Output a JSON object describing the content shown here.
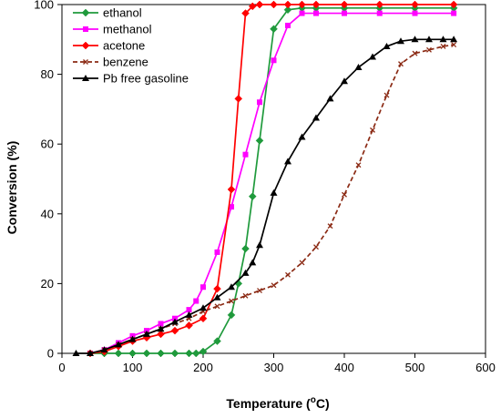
{
  "chart_data": {
    "type": "line",
    "title": "",
    "xlabel": "Temperature (",
    "xlabel_unit_sup": "o",
    "xlabel_unit_tail": "C)",
    "ylabel": "Conversion (%)",
    "xlim": [
      0,
      600
    ],
    "ylim": [
      0,
      100
    ],
    "xticks": [
      "0",
      "100",
      "200",
      "300",
      "400",
      "500",
      "600"
    ],
    "yticks": [
      "0",
      "20",
      "40",
      "60",
      "80",
      "100"
    ],
    "grid": false,
    "legend_position": "top-left",
    "series": [
      {
        "name": "ethanol",
        "color": "#1f9a3c",
        "marker": "diamond",
        "x": [
          40,
          60,
          80,
          100,
          120,
          140,
          160,
          180,
          190,
          200,
          220,
          240,
          250,
          260,
          270,
          280,
          300,
          320,
          340,
          360,
          400,
          450,
          500,
          555
        ],
        "y": [
          0,
          0,
          0,
          0,
          0,
          0,
          0,
          0,
          0,
          0.5,
          3.5,
          11,
          20,
          30,
          45,
          61,
          93,
          98.5,
          99,
          99,
          99,
          99,
          99,
          99
        ]
      },
      {
        "name": "methanol",
        "color": "#ff00ff",
        "marker": "square",
        "x": [
          40,
          60,
          80,
          100,
          120,
          140,
          160,
          180,
          190,
          200,
          220,
          240,
          260,
          280,
          300,
          320,
          340,
          360,
          400,
          450,
          500,
          555
        ],
        "y": [
          0,
          1,
          3,
          5,
          6.5,
          8.5,
          10,
          12.5,
          15,
          19,
          29,
          42,
          57,
          72,
          84,
          94,
          97.5,
          97.5,
          97.5,
          97.5,
          97.5,
          97.5
        ]
      },
      {
        "name": "acetone",
        "color": "#ff0000",
        "marker": "diamond",
        "x": [
          40,
          60,
          80,
          100,
          120,
          140,
          160,
          180,
          200,
          220,
          240,
          250,
          260,
          270,
          280,
          300,
          320,
          340,
          360,
          400,
          450,
          500,
          555
        ],
        "y": [
          0,
          0.5,
          2,
          3.5,
          4.5,
          5.5,
          6.5,
          8,
          10,
          18.5,
          47,
          73,
          97.5,
          99.5,
          100,
          100,
          100,
          100,
          100,
          100,
          100,
          100,
          100
        ]
      },
      {
        "name": "benzene",
        "color": "#8b2a14",
        "marker": "x",
        "x": [
          40,
          60,
          80,
          100,
          120,
          140,
          160,
          180,
          200,
          220,
          240,
          260,
          280,
          300,
          320,
          340,
          360,
          380,
          400,
          420,
          440,
          460,
          480,
          500,
          520,
          540,
          555
        ],
        "y": [
          0,
          1,
          2.5,
          4,
          5.5,
          7,
          8.5,
          10,
          12,
          13.5,
          15,
          16.5,
          18,
          19.5,
          22.5,
          26,
          30.5,
          36.5,
          45.5,
          54,
          64,
          74,
          83,
          86,
          87,
          88,
          88.5
        ]
      },
      {
        "name": "Pb free gasoline",
        "color": "#000000",
        "marker": "triangle",
        "x": [
          20,
          40,
          60,
          80,
          100,
          120,
          140,
          160,
          180,
          200,
          220,
          240,
          260,
          270,
          280,
          300,
          320,
          340,
          360,
          380,
          400,
          420,
          440,
          460,
          480,
          500,
          520,
          540,
          555
        ],
        "y": [
          0,
          0,
          1,
          2.5,
          4,
          5.5,
          7,
          9,
          11,
          13,
          16,
          19,
          23,
          26,
          31,
          46,
          55,
          62,
          67.5,
          73,
          78,
          82,
          85,
          88,
          89.5,
          90,
          90,
          90,
          90
        ]
      }
    ]
  }
}
